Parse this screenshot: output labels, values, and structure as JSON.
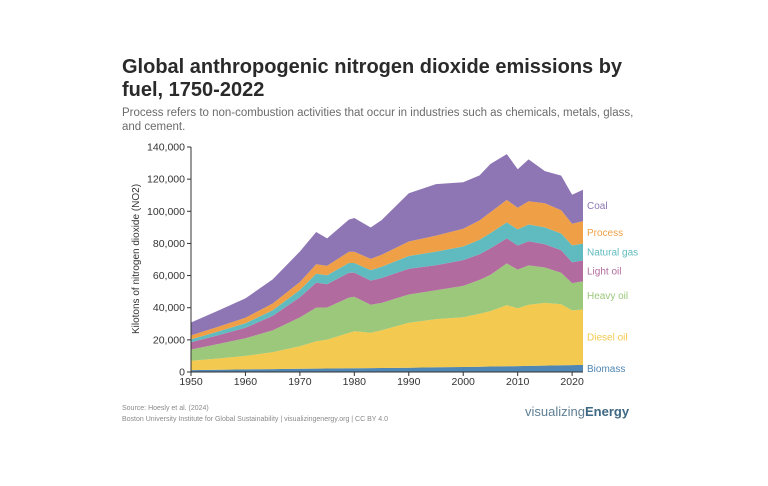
{
  "title": "Global anthropogenic nitrogen dioxide emissions by fuel, 1750-2022",
  "subtitle": "Process refers to non-combustion activities that occur in industries such as chemicals, metals, glass, and cement.",
  "source_line": "Source: Hoesly et al. (2024)",
  "credit_line": "Boston University Institute for Global Sustainability | visualizingenergy.org | CC BY 4.0",
  "brand": {
    "prefix": "visualizing",
    "suffix": "Energy"
  },
  "chart_data": {
    "type": "area",
    "stacked": true,
    "title": "Global anthropogenic nitrogen dioxide emissions by fuel, 1750-2022",
    "xlabel": "",
    "ylabel": "Kilotons of nitrogen dioxide (NO2)",
    "xlim": [
      1950,
      2022
    ],
    "ylim": [
      0,
      140000
    ],
    "x_ticks": [
      1950,
      1960,
      1970,
      1980,
      1990,
      2000,
      2010,
      2020
    ],
    "y_ticks": [
      0,
      20000,
      40000,
      60000,
      80000,
      100000,
      120000,
      140000
    ],
    "y_tick_labels": [
      "0",
      "20,000",
      "40,000",
      "60,000",
      "80,000",
      "100,000",
      "120,000",
      "140,000"
    ],
    "x": [
      1950,
      1955,
      1960,
      1965,
      1970,
      1973,
      1975,
      1979,
      1980,
      1983,
      1985,
      1990,
      1995,
      2000,
      2003,
      2005,
      2008,
      2010,
      2012,
      2015,
      2018,
      2020,
      2022
    ],
    "series": [
      {
        "name": "Biomass",
        "color": "#4f86b3",
        "values": [
          1200,
          1400,
          1600,
          1800,
          2000,
          2100,
          2150,
          2300,
          2350,
          2400,
          2500,
          2700,
          2900,
          3100,
          3300,
          3400,
          3600,
          3700,
          3800,
          4000,
          4200,
          4300,
          4400
        ]
      },
      {
        "name": "Diesel oil",
        "color": "#f3c94f",
        "values": [
          5800,
          7000,
          8400,
          10600,
          14000,
          17000,
          18000,
          22000,
          23000,
          22000,
          23500,
          28000,
          30000,
          31000,
          33000,
          34500,
          38000,
          36000,
          38000,
          39000,
          38000,
          34000,
          34500
        ]
      },
      {
        "name": "Heavy oil",
        "color": "#9bc87a",
        "values": [
          7000,
          9000,
          11000,
          13500,
          18000,
          21000,
          20000,
          22000,
          21500,
          17500,
          17000,
          17500,
          18000,
          19500,
          21000,
          22500,
          26000,
          24000,
          24500,
          22000,
          19500,
          17000,
          17500
        ]
      },
      {
        "name": "Light oil",
        "color": "#b26b9e",
        "values": [
          4500,
          5500,
          6500,
          9000,
          12500,
          15500,
          14500,
          15500,
          15000,
          15000,
          15500,
          16000,
          15500,
          16000,
          16000,
          16500,
          15500,
          15000,
          15000,
          14500,
          14000,
          13000,
          13000
        ]
      },
      {
        "name": "Natural gas",
        "color": "#5fbbbf",
        "values": [
          1800,
          2300,
          2800,
          3500,
          4500,
          5500,
          5500,
          6000,
          6000,
          6500,
          7000,
          8000,
          8500,
          8500,
          9000,
          9500,
          10000,
          10000,
          10500,
          10500,
          10500,
          10500,
          10500
        ]
      },
      {
        "name": "Process",
        "color": "#efa046",
        "values": [
          2500,
          3000,
          3500,
          4200,
          5000,
          6000,
          6000,
          7000,
          7000,
          7000,
          7500,
          9000,
          10000,
          11000,
          12000,
          13000,
          14000,
          13500,
          14500,
          15000,
          14500,
          13500,
          14000
        ]
      },
      {
        "name": "Coal",
        "color": "#8d76b3",
        "values": [
          8000,
          10000,
          12000,
          15000,
          19000,
          20000,
          17000,
          20000,
          21000,
          19500,
          21500,
          30000,
          32000,
          29000,
          28000,
          30000,
          28500,
          24000,
          26000,
          20000,
          21500,
          18000,
          19500
        ]
      }
    ]
  }
}
